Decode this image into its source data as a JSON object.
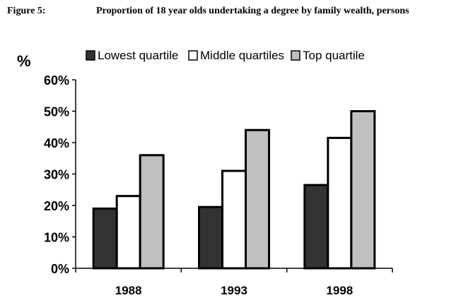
{
  "figure": {
    "number": "Figure 5:",
    "title": "Proportion of 18 year olds undertaking a degree by family wealth, persons"
  },
  "colors": {
    "lowest_quartile": "#333333",
    "middle_quartiles": "#ffffff",
    "top_quartile": "#c0c0c0",
    "axis": "#000000"
  },
  "chart_data": {
    "type": "bar",
    "title": "Proportion of 18 year olds undertaking a degree by family wealth, persons",
    "ylabel": "%",
    "xlabel": "",
    "categories": [
      "1988",
      "1993",
      "1998"
    ],
    "series": [
      {
        "name": "Lowest quartile",
        "values": [
          19,
          19.5,
          26.5
        ]
      },
      {
        "name": "Middle quartiles",
        "values": [
          23,
          31,
          41.5
        ]
      },
      {
        "name": "Top quartile",
        "values": [
          36,
          44,
          50
        ]
      }
    ],
    "ylim": [
      0,
      60
    ],
    "yticks": [
      0,
      10,
      20,
      30,
      40,
      50,
      60
    ],
    "ytick_labels": [
      "0%",
      "10%",
      "20%",
      "30%",
      "40%",
      "50%",
      "60%"
    ],
    "grid": false,
    "legend_position": "top"
  }
}
